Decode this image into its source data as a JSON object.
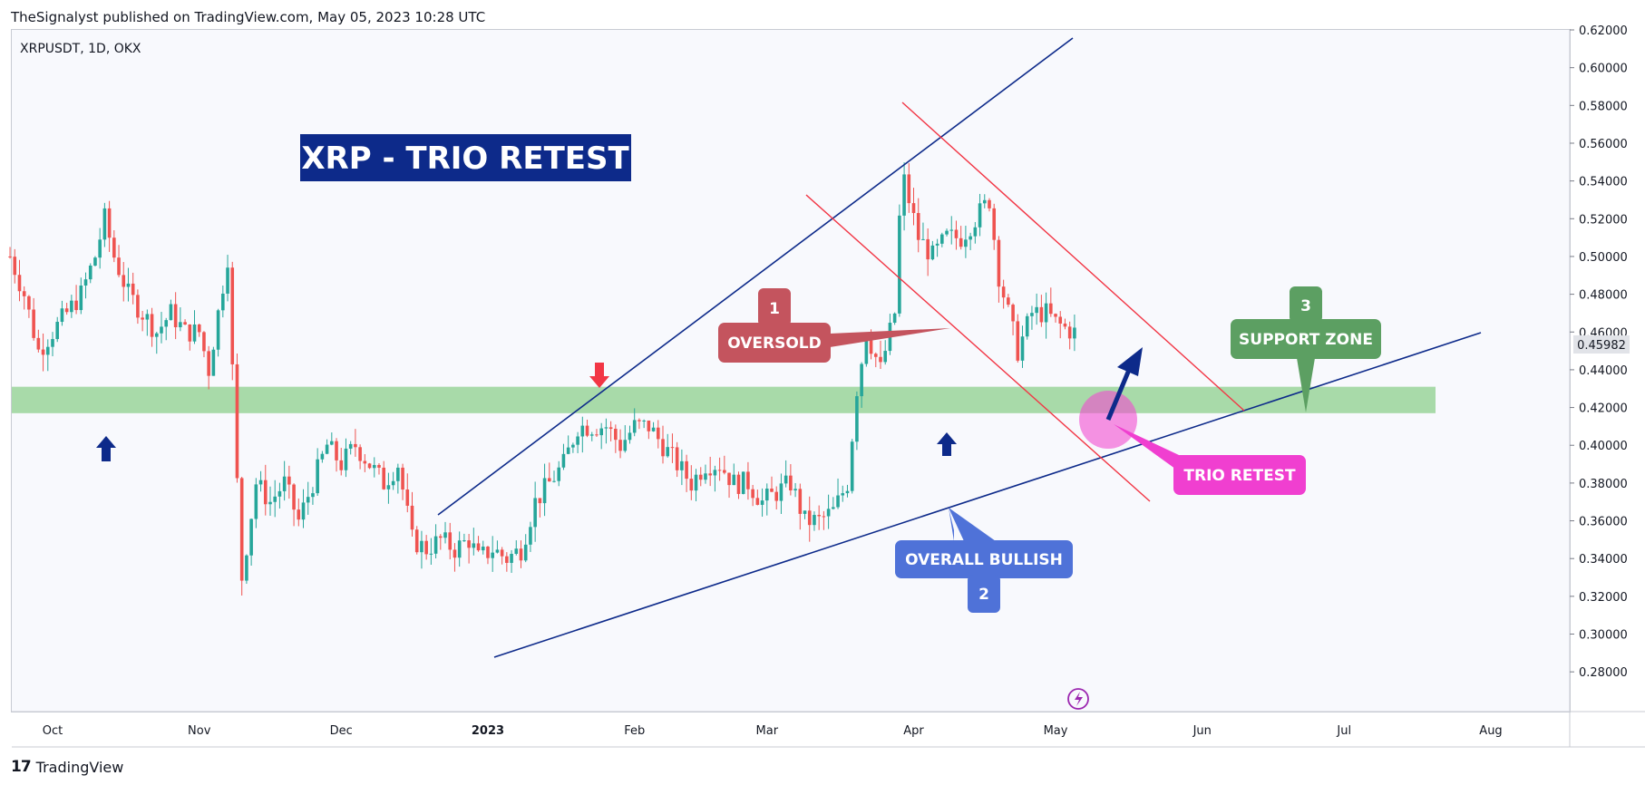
{
  "header": {
    "publisher": "TheSignalyst published on TradingView.com, May 05, 2023 10:28 UTC"
  },
  "footer": {
    "brand": "TradingView"
  },
  "chart": {
    "symbol": "XRPUSDT, 1D, OKX"
  },
  "colors": {
    "up": "#26a69a",
    "down": "#ef5350",
    "channel_blue": "#0d2a8a",
    "channel_red": "#f23645",
    "support_zone": "#9fd6a0"
  },
  "annotations": {
    "title": "XRP - TRIO RETEST",
    "oversold_number": "1",
    "oversold_label": "OVERSOLD",
    "bullish_label": "OVERALL BULLISH",
    "bullish_number": "2",
    "support_number": "3",
    "support_label": "SUPPORT ZONE",
    "trio_label": "TRIO RETEST"
  },
  "chart_data": {
    "type": "candlestick",
    "ylim": [
      0.27,
      0.62
    ],
    "yticks": [
      "0.28000",
      "0.30000",
      "0.32000",
      "0.34000",
      "0.36000",
      "0.38000",
      "0.40000",
      "0.42000",
      "0.44000",
      "0.46000",
      "0.48000",
      "0.50000",
      "0.52000",
      "0.54000",
      "0.56000",
      "0.58000",
      "0.60000",
      "0.62000"
    ],
    "xticks": [
      {
        "label": "Oct",
        "date": "2022-10-01"
      },
      {
        "label": "Nov",
        "date": "2022-11-01"
      },
      {
        "label": "Dec",
        "date": "2022-12-01"
      },
      {
        "label": "2023",
        "date": "2023-01-01"
      },
      {
        "label": "Feb",
        "date": "2023-02-01"
      },
      {
        "label": "Mar",
        "date": "2023-03-01"
      },
      {
        "label": "Apr",
        "date": "2023-04-01"
      },
      {
        "label": "May",
        "date": "2023-05-01"
      },
      {
        "label": "Jun",
        "date": "2023-06-01"
      },
      {
        "label": "Jul",
        "date": "2023-07-01"
      },
      {
        "label": "Aug",
        "date": "2023-08-01"
      }
    ],
    "last_price": "0.45982",
    "support_zone": [
      0.417,
      0.431
    ],
    "closes": [
      [
        "2022-09-22",
        0.5
      ],
      [
        "2022-09-25",
        0.48
      ],
      [
        "2022-09-28",
        0.45
      ],
      [
        "2022-10-01",
        0.46
      ],
      [
        "2022-10-04",
        0.47
      ],
      [
        "2022-10-07",
        0.48
      ],
      [
        "2022-10-10",
        0.5
      ],
      [
        "2022-10-12",
        0.52
      ],
      [
        "2022-10-14",
        0.5
      ],
      [
        "2022-10-17",
        0.48
      ],
      [
        "2022-10-20",
        0.47
      ],
      [
        "2022-10-23",
        0.46
      ],
      [
        "2022-10-26",
        0.47
      ],
      [
        "2022-10-29",
        0.46
      ],
      [
        "2022-11-01",
        0.46
      ],
      [
        "2022-11-03",
        0.44
      ],
      [
        "2022-11-05",
        0.47
      ],
      [
        "2022-11-07",
        0.5
      ],
      [
        "2022-11-08",
        0.44
      ],
      [
        "2022-11-09",
        0.38
      ],
      [
        "2022-11-10",
        0.33
      ],
      [
        "2022-11-13",
        0.38
      ],
      [
        "2022-11-16",
        0.37
      ],
      [
        "2022-11-19",
        0.38
      ],
      [
        "2022-11-22",
        0.36
      ],
      [
        "2022-11-25",
        0.38
      ],
      [
        "2022-11-28",
        0.4
      ],
      [
        "2022-12-01",
        0.39
      ],
      [
        "2022-12-04",
        0.4
      ],
      [
        "2022-12-07",
        0.39
      ],
      [
        "2022-12-10",
        0.38
      ],
      [
        "2022-12-13",
        0.39
      ],
      [
        "2022-12-16",
        0.35
      ],
      [
        "2022-12-19",
        0.345
      ],
      [
        "2022-12-22",
        0.35
      ],
      [
        "2022-12-25",
        0.345
      ],
      [
        "2022-12-28",
        0.35
      ],
      [
        "2022-12-30",
        0.34
      ],
      [
        "2023-01-02",
        0.345
      ],
      [
        "2023-01-05",
        0.34
      ],
      [
        "2023-01-08",
        0.345
      ],
      [
        "2023-01-11",
        0.37
      ],
      [
        "2023-01-14",
        0.38
      ],
      [
        "2023-01-17",
        0.39
      ],
      [
        "2023-01-20",
        0.41
      ],
      [
        "2023-01-23",
        0.41
      ],
      [
        "2023-01-26",
        0.41
      ],
      [
        "2023-01-29",
        0.4
      ],
      [
        "2023-02-01",
        0.41
      ],
      [
        "2023-02-04",
        0.41
      ],
      [
        "2023-02-07",
        0.4
      ],
      [
        "2023-02-10",
        0.39
      ],
      [
        "2023-02-13",
        0.38
      ],
      [
        "2023-02-16",
        0.39
      ],
      [
        "2023-02-19",
        0.39
      ],
      [
        "2023-02-22",
        0.38
      ],
      [
        "2023-02-25",
        0.38
      ],
      [
        "2023-02-28",
        0.37
      ],
      [
        "2023-03-03",
        0.375
      ],
      [
        "2023-03-06",
        0.38
      ],
      [
        "2023-03-09",
        0.36
      ],
      [
        "2023-03-12",
        0.36
      ],
      [
        "2023-03-15",
        0.365
      ],
      [
        "2023-03-18",
        0.38
      ],
      [
        "2023-03-20",
        0.43
      ],
      [
        "2023-03-22",
        0.46
      ],
      [
        "2023-03-25",
        0.44
      ],
      [
        "2023-03-28",
        0.47
      ],
      [
        "2023-03-29",
        0.52
      ],
      [
        "2023-03-30",
        0.54
      ],
      [
        "2023-04-02",
        0.51
      ],
      [
        "2023-04-05",
        0.5
      ],
      [
        "2023-04-08",
        0.51
      ],
      [
        "2023-04-11",
        0.51
      ],
      [
        "2023-04-14",
        0.52
      ],
      [
        "2023-04-17",
        0.53
      ],
      [
        "2023-04-19",
        0.49
      ],
      [
        "2023-04-21",
        0.47
      ],
      [
        "2023-04-23",
        0.45
      ],
      [
        "2023-04-26",
        0.47
      ],
      [
        "2023-04-29",
        0.47
      ],
      [
        "2023-05-01",
        0.465
      ],
      [
        "2023-05-03",
        0.462
      ],
      [
        "2023-05-05",
        0.4598
      ]
    ]
  }
}
